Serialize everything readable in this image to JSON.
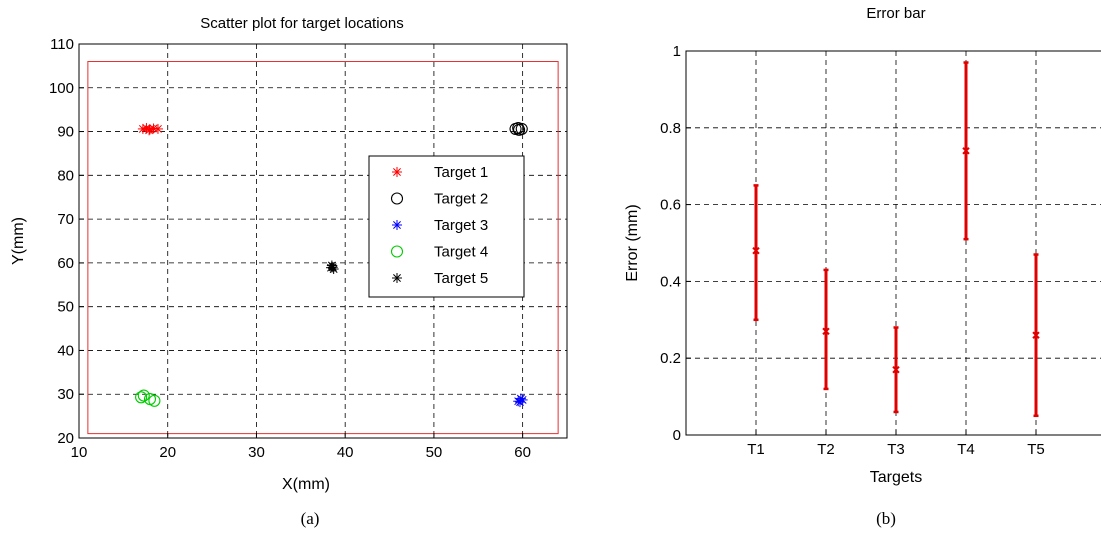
{
  "chart_data": [
    {
      "type": "scatter",
      "title": "Scatter plot for target locations",
      "xlabel": "X(mm)",
      "ylabel": "Y(mm)",
      "xlim": [
        10,
        65
      ],
      "ylim": [
        20,
        110
      ],
      "xticks": [
        10,
        20,
        30,
        40,
        50,
        60
      ],
      "yticks": [
        20,
        30,
        40,
        50,
        60,
        70,
        80,
        90,
        100,
        110
      ],
      "grid": true,
      "legend_position": "right",
      "boundary": {
        "x": [
          11,
          64
        ],
        "y": [
          21,
          106
        ],
        "color": "#e83030"
      },
      "series": [
        {
          "name": "Target 1",
          "marker": "star",
          "color": "#ff0000",
          "points": [
            [
              17.2,
              90.6
            ],
            [
              17.6,
              90.8
            ],
            [
              18.0,
              90.5
            ],
            [
              18.4,
              90.7
            ],
            [
              18.9,
              90.6
            ],
            [
              17.9,
              90.3
            ]
          ]
        },
        {
          "name": "Target 2",
          "marker": "circle",
          "color": "#000000",
          "points": [
            [
              59.2,
              90.6
            ],
            [
              59.6,
              90.4
            ],
            [
              59.9,
              90.6
            ],
            [
              59.5,
              90.8
            ]
          ]
        },
        {
          "name": "Target 3",
          "marker": "star",
          "color": "#0000ff",
          "points": [
            [
              59.5,
              28.4
            ],
            [
              59.8,
              29.0
            ],
            [
              60.0,
              28.7
            ],
            [
              59.7,
              28.2
            ]
          ]
        },
        {
          "name": "Target 4",
          "marker": "circle",
          "color": "#00cc00",
          "points": [
            [
              17.0,
              29.3
            ],
            [
              17.3,
              29.7
            ],
            [
              18.0,
              28.9
            ],
            [
              18.5,
              28.5
            ]
          ]
        },
        {
          "name": "Target 5",
          "marker": "star",
          "color": "#000000",
          "points": [
            [
              38.5,
              59.4
            ],
            [
              38.7,
              58.6
            ],
            [
              38.6,
              59.0
            ],
            [
              38.4,
              58.9
            ]
          ]
        }
      ]
    },
    {
      "type": "errorbar",
      "title": "Error bar",
      "xlabel": "Targets",
      "ylabel": "Error (mm)",
      "ylim": [
        0,
        1
      ],
      "yticks": [
        0,
        0.2,
        0.4,
        0.6,
        0.8,
        1
      ],
      "grid": true,
      "color": "#e00000",
      "categories": [
        "T1",
        "T2",
        "T3",
        "T4",
        "T5"
      ],
      "values": [
        0.48,
        0.27,
        0.17,
        0.74,
        0.26
      ],
      "lower": [
        0.3,
        0.12,
        0.06,
        0.51,
        0.05
      ],
      "upper": [
        0.65,
        0.43,
        0.28,
        0.97,
        0.47
      ]
    }
  ],
  "captions": {
    "a": "(a)",
    "b": "(b)"
  }
}
